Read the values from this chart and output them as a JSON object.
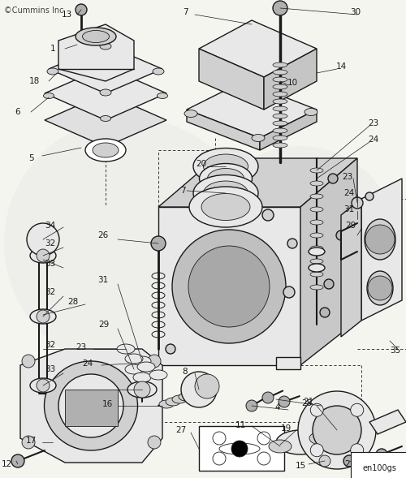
{
  "copyright": "©Cummins Inc",
  "image_id": "en100gs",
  "bg_color": "#f5f5f0",
  "lw_main": 1.0,
  "lw_thin": 0.6,
  "lw_thick": 1.5,
  "line_color": "#1a1a1a",
  "fill_light": "#e8e8e8",
  "fill_mid": "#d0d0d0",
  "fill_dark": "#b0b0b0",
  "fig_w": 5.0,
  "fig_h": 5.89
}
